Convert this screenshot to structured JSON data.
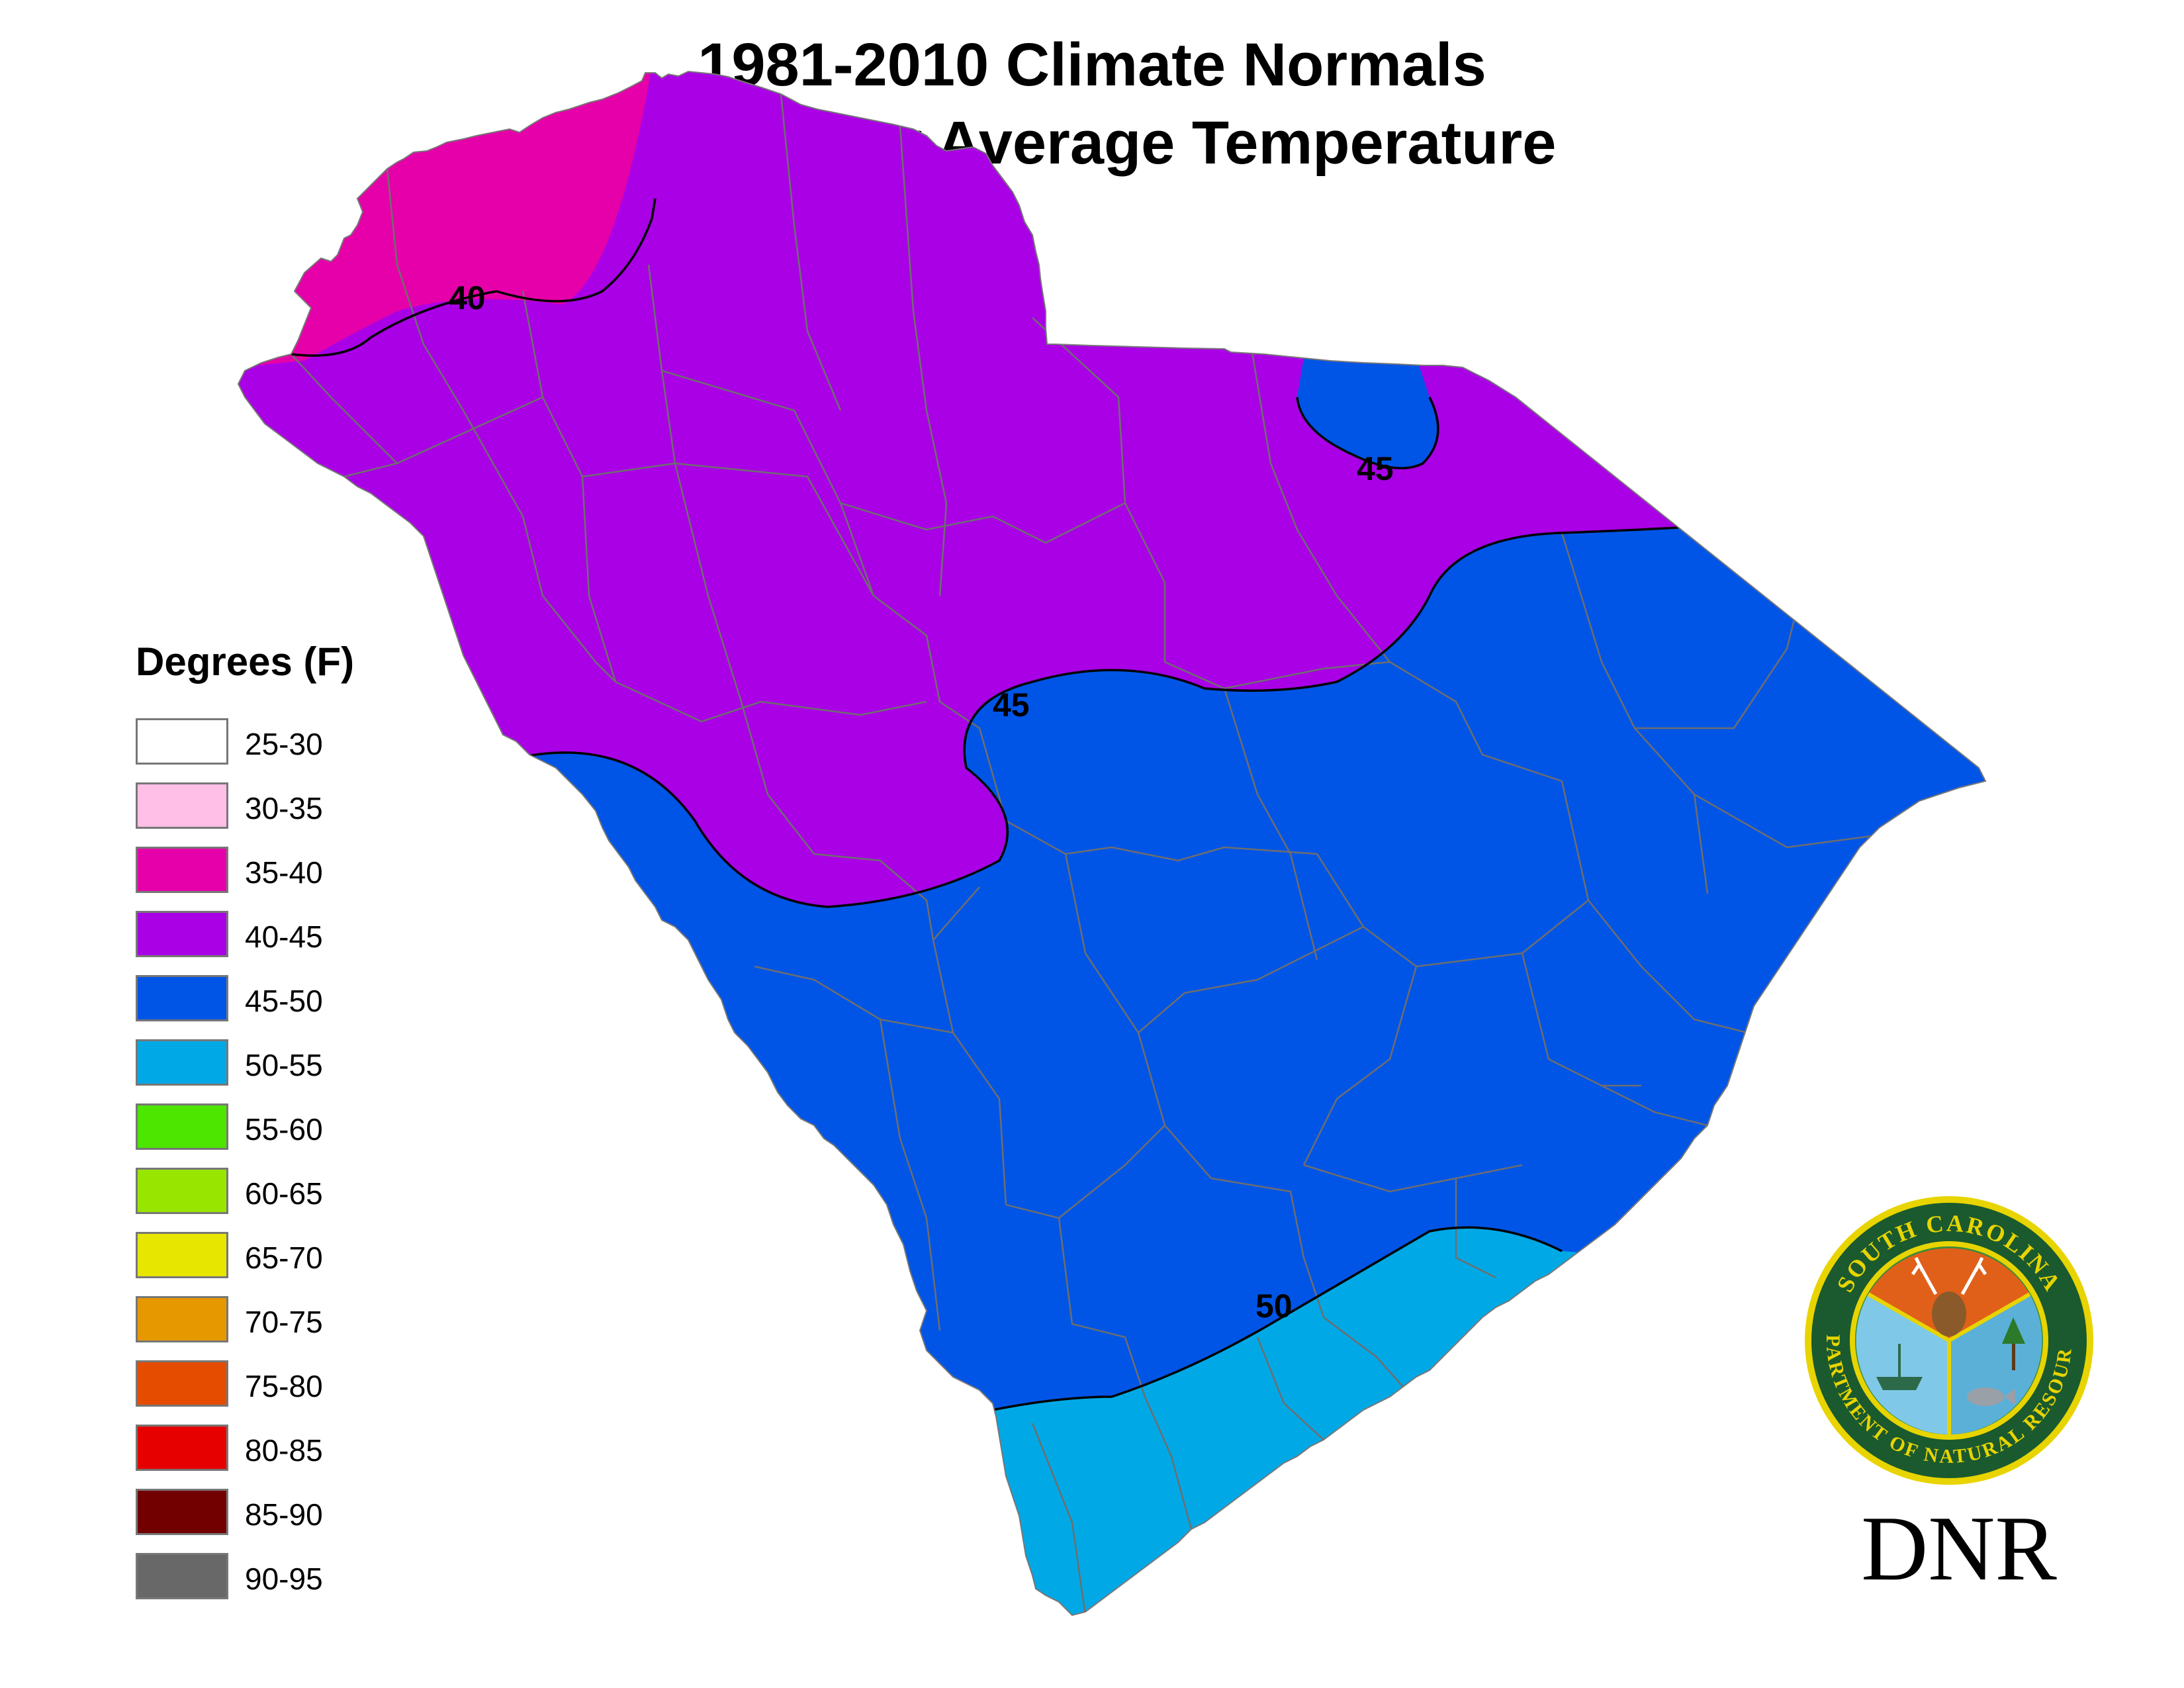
{
  "title": {
    "line1": "1981-2010 Climate Normals",
    "line2": "December Average Temperature"
  },
  "legend": {
    "title": "Degrees (F)",
    "items": [
      {
        "label": "25-30",
        "color": "#ffffff"
      },
      {
        "label": "30-35",
        "color": "#ffbfe6"
      },
      {
        "label": "35-40",
        "color": "#e600a9"
      },
      {
        "label": "40-45",
        "color": "#a900e6"
      },
      {
        "label": "45-50",
        "color": "#0055e6"
      },
      {
        "label": "50-55",
        "color": "#00a9e6"
      },
      {
        "label": "55-60",
        "color": "#4ce600"
      },
      {
        "label": "60-65",
        "color": "#98e600"
      },
      {
        "label": "65-70",
        "color": "#e6e600"
      },
      {
        "label": "70-75",
        "color": "#e69800"
      },
      {
        "label": "75-80",
        "color": "#e64c00"
      },
      {
        "label": "80-85",
        "color": "#e60000"
      },
      {
        "label": "85-90",
        "color": "#730000"
      },
      {
        "label": "90-95",
        "color": "#686868"
      }
    ]
  },
  "contour_labels": {
    "l40": "40",
    "l45_north": "45",
    "l45_mid": "45",
    "l50": "50"
  },
  "logo": {
    "ring_top_text": "SOUTH CAROLINA",
    "ring_bottom_text": "DEPARTMENT OF NATURAL RESOURCES",
    "wordmark": "DNR"
  }
}
